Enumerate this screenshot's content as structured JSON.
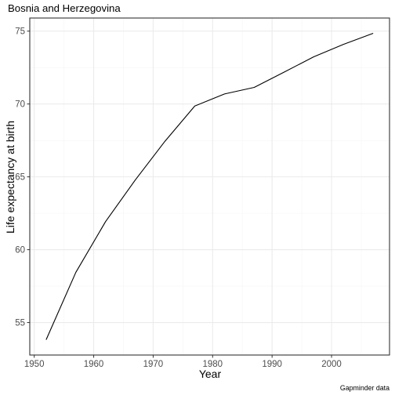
{
  "chart_data": {
    "type": "line",
    "title": "Bosnia and Herzegovina",
    "xlabel": "Year",
    "ylabel": "Life expectancy at birth",
    "caption": "Gapminder data",
    "x": [
      1952,
      1957,
      1962,
      1967,
      1972,
      1977,
      1982,
      1987,
      1992,
      1997,
      2002,
      2007
    ],
    "series": [
      {
        "values": [
          53.82,
          58.45,
          61.93,
          64.79,
          67.45,
          69.86,
          70.69,
          71.14,
          72.18,
          73.24,
          74.09,
          74.85
        ]
      }
    ],
    "xlim": [
      1949.25,
      2009.75
    ],
    "ylim": [
      52.77,
      75.9
    ],
    "x_ticks": [
      {
        "value": 1950,
        "label": "1950"
      },
      {
        "value": 1960,
        "label": "1960"
      },
      {
        "value": 1970,
        "label": "1970"
      },
      {
        "value": 1980,
        "label": "1980"
      },
      {
        "value": 1990,
        "label": "1990"
      },
      {
        "value": 2000,
        "label": "2000"
      }
    ],
    "x_minor_ticks": [
      1955,
      1965,
      1975,
      1985,
      1995,
      2005
    ],
    "y_ticks": [
      {
        "value": 55,
        "label": "55"
      },
      {
        "value": 60,
        "label": "60"
      },
      {
        "value": 65,
        "label": "65"
      },
      {
        "value": 70,
        "label": "70"
      },
      {
        "value": 75,
        "label": "75"
      }
    ],
    "y_minor_ticks": [
      57.5,
      62.5,
      67.5,
      72.5
    ],
    "grid": true,
    "legend": "none",
    "colors": {
      "line": "#000000",
      "grid_major": "#ebebeb",
      "grid_minor": "#f5f5f5",
      "panel_border": "#333333",
      "tick_label": "#4d4d4d",
      "background": "#ffffff"
    }
  }
}
